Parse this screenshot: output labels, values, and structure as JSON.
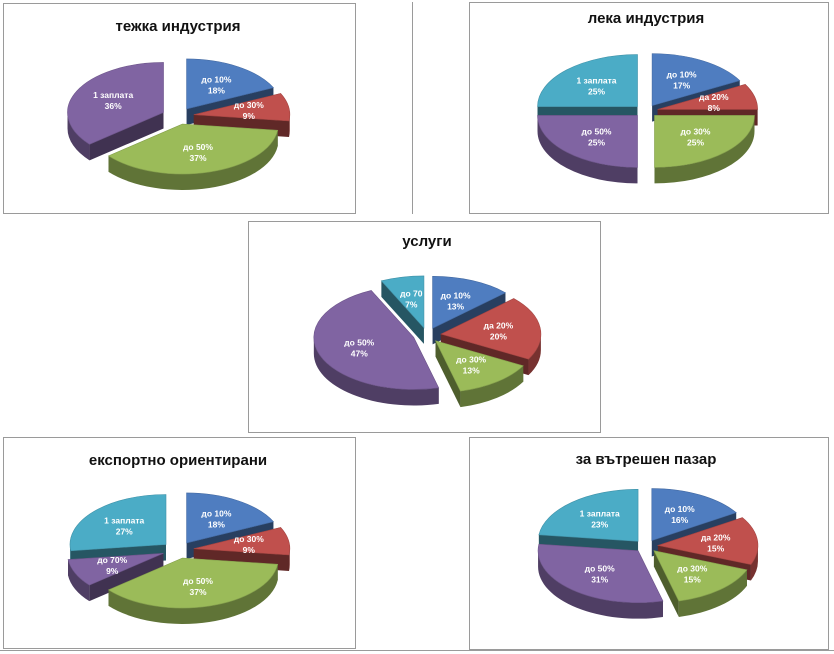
{
  "colors": {
    "blue": "#4F7DC0",
    "red": "#C0504D",
    "green": "#9BBB59",
    "purple": "#8064A2",
    "teal": "#4BACC6"
  },
  "chart_data": [
    {
      "type": "pie",
      "title": "тежка индустрия",
      "slices": [
        {
          "name": "до 10%",
          "value": 18,
          "label": "18%",
          "color": "blue"
        },
        {
          "name": "до 30%",
          "value": 9,
          "label": "9%",
          "color": "red"
        },
        {
          "name": "до 50%",
          "value": 37,
          "label": "37%",
          "color": "green"
        },
        {
          "name": "1 заплата",
          "value": 36,
          "label": "36%",
          "color": "purple"
        }
      ]
    },
    {
      "type": "pie",
      "title": "лека индустрия",
      "slices": [
        {
          "name": "до 10%",
          "value": 17,
          "label": "17%",
          "color": "blue"
        },
        {
          "name": "да 20%",
          "value": 8,
          "label": "8%",
          "color": "red"
        },
        {
          "name": "до 30%",
          "value": 25,
          "label": "25%",
          "color": "green"
        },
        {
          "name": "до 50%",
          "value": 25,
          "label": "25%",
          "color": "purple"
        },
        {
          "name": "1 заплата",
          "value": 25,
          "label": "25%",
          "color": "teal"
        }
      ]
    },
    {
      "type": "pie",
      "title": "услуги",
      "slices": [
        {
          "name": "до 10%",
          "value": 13,
          "label": "13%",
          "color": "blue"
        },
        {
          "name": "да 20%",
          "value": 20,
          "label": "20%",
          "color": "red"
        },
        {
          "name": "до 30%",
          "value": 13,
          "label": "13%",
          "color": "green"
        },
        {
          "name": "до 50%",
          "value": 47,
          "label": "47%",
          "color": "purple"
        },
        {
          "name": "до 70",
          "value": 7,
          "label": "7%",
          "color": "teal"
        }
      ]
    },
    {
      "type": "pie",
      "title": "експортно ориентирани",
      "slices": [
        {
          "name": "до 10%",
          "value": 18,
          "label": "18%",
          "color": "blue"
        },
        {
          "name": "до 30%",
          "value": 9,
          "label": "9%",
          "color": "red"
        },
        {
          "name": "до 50%",
          "value": 37,
          "label": "37%",
          "color": "green"
        },
        {
          "name": "до 70%",
          "value": 9,
          "label": "9%",
          "color": "purple"
        },
        {
          "name": "1 заплата",
          "value": 27,
          "label": "27%",
          "color": "teal"
        }
      ]
    },
    {
      "type": "pie",
      "title": "за вътрешен пазар",
      "slices": [
        {
          "name": "до 10%",
          "value": 16,
          "label": "16%",
          "color": "blue"
        },
        {
          "name": "да 20%",
          "value": 15,
          "label": "15%",
          "color": "red"
        },
        {
          "name": "до 30%",
          "value": 15,
          "label": "15%",
          "color": "green"
        },
        {
          "name": "до 50%",
          "value": 31,
          "label": "31%",
          "color": "purple"
        },
        {
          "name": "1 заплата",
          "value": 23,
          "label": "23%",
          "color": "teal"
        }
      ]
    }
  ]
}
